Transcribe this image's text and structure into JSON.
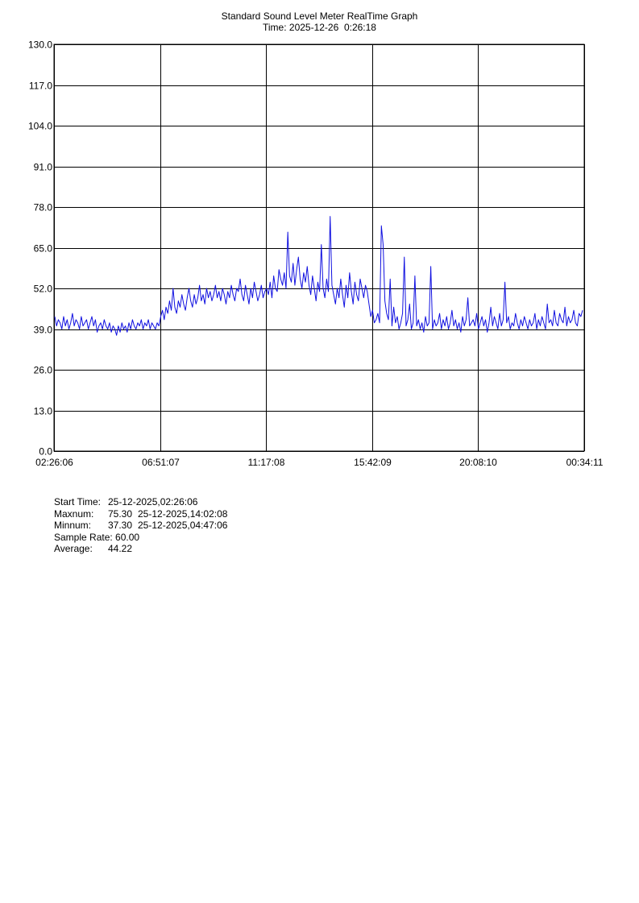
{
  "header": {
    "title": "Standard Sound Level Meter RealTime Graph",
    "time_line": "Time: 2025-12-26  0:26:18"
  },
  "colors": {
    "series": "#1010e0",
    "grid": "#000000",
    "background": "#ffffff"
  },
  "stats": {
    "start_label": "Start Time:",
    "start_value": "25-12-2025,02:26:06",
    "max_label": "Maxnum:",
    "max_value": "75.30",
    "max_time": "25-12-2025,14:02:08",
    "min_label": "Minnum:",
    "min_value": "37.30",
    "min_time": "25-12-2025,04:47:06",
    "rate_label": "Sample Rate:",
    "rate_value": "60.00",
    "avg_label": "Average:",
    "avg_value": "44.22"
  },
  "chart_data": {
    "type": "line",
    "title": "Standard Sound Level Meter RealTime Graph",
    "subtitle": "Time: 2025-12-26  0:26:18",
    "xlabel": "",
    "ylabel": "",
    "ylim": [
      0,
      130
    ],
    "y_ticks": [
      "0.0",
      "13.0",
      "26.0",
      "39.0",
      "52.0",
      "65.0",
      "78.0",
      "91.0",
      "104.0",
      "117.0",
      "130.0"
    ],
    "x_ticks": [
      "02:26:06",
      "06:51:07",
      "11:17:08",
      "15:42:09",
      "20:08:10",
      "00:34:11"
    ],
    "grid": true,
    "legend": "none",
    "series": [
      {
        "values": [
          43,
          40,
          42,
          41,
          39,
          43,
          40,
          42,
          39,
          41,
          44,
          40,
          42,
          41,
          39,
          43,
          40,
          41,
          42,
          39,
          41,
          43,
          40,
          42,
          38,
          40,
          41,
          39,
          42,
          40,
          39,
          41,
          38,
          40,
          39,
          37,
          40,
          38,
          41,
          39,
          40,
          38,
          41,
          39,
          42,
          40,
          39,
          41,
          40,
          42,
          39,
          41,
          40,
          42,
          39,
          41,
          40,
          39,
          41,
          40,
          43,
          45,
          42,
          46,
          44,
          48,
          45,
          52,
          46,
          44,
          48,
          46,
          50,
          47,
          45,
          49,
          52,
          48,
          46,
          50,
          47,
          49,
          53,
          48,
          50,
          47,
          52,
          49,
          51,
          48,
          50,
          53,
          49,
          51,
          48,
          52,
          50,
          47,
          51,
          49,
          53,
          50,
          48,
          52,
          51,
          55,
          50,
          48,
          53,
          50,
          47,
          52,
          49,
          54,
          51,
          48,
          50,
          53,
          49,
          51,
          52,
          50,
          54,
          49,
          56,
          52,
          51,
          58,
          55,
          53,
          57,
          52,
          70,
          56,
          54,
          60,
          53,
          58,
          62,
          55,
          52,
          57,
          54,
          59,
          53,
          50,
          56,
          52,
          48,
          54,
          51,
          66,
          52,
          49,
          55,
          51,
          75,
          53,
          50,
          47,
          52,
          49,
          55,
          50,
          46,
          53,
          49,
          57,
          51,
          47,
          54,
          50,
          48,
          55,
          52,
          49,
          53,
          51,
          47,
          43,
          45,
          41,
          42,
          44,
          41,
          72,
          66,
          48,
          44,
          42,
          55,
          40,
          46,
          41,
          43,
          39,
          41,
          44,
          62,
          40,
          42,
          47,
          39,
          41,
          56,
          40,
          42,
          39,
          41,
          38,
          43,
          40,
          41,
          59,
          39,
          42,
          40,
          41,
          44,
          39,
          42,
          40,
          43,
          39,
          41,
          45,
          40,
          42,
          39,
          41,
          38,
          43,
          40,
          42,
          49,
          40,
          41,
          42,
          40,
          44,
          39,
          41,
          43,
          40,
          42,
          38,
          41,
          46,
          40,
          43,
          41,
          39,
          44,
          40,
          42,
          54,
          41,
          43,
          39,
          41,
          40,
          44,
          41,
          39,
          42,
          40,
          43,
          41,
          39,
          42,
          40,
          41,
          44,
          39,
          42,
          40,
          43,
          41,
          39,
          47,
          41,
          42,
          40,
          45,
          41,
          40,
          44,
          42,
          41,
          46,
          40,
          43,
          41,
          42,
          45,
          41,
          40,
          44,
          43,
          45
        ]
      }
    ]
  }
}
